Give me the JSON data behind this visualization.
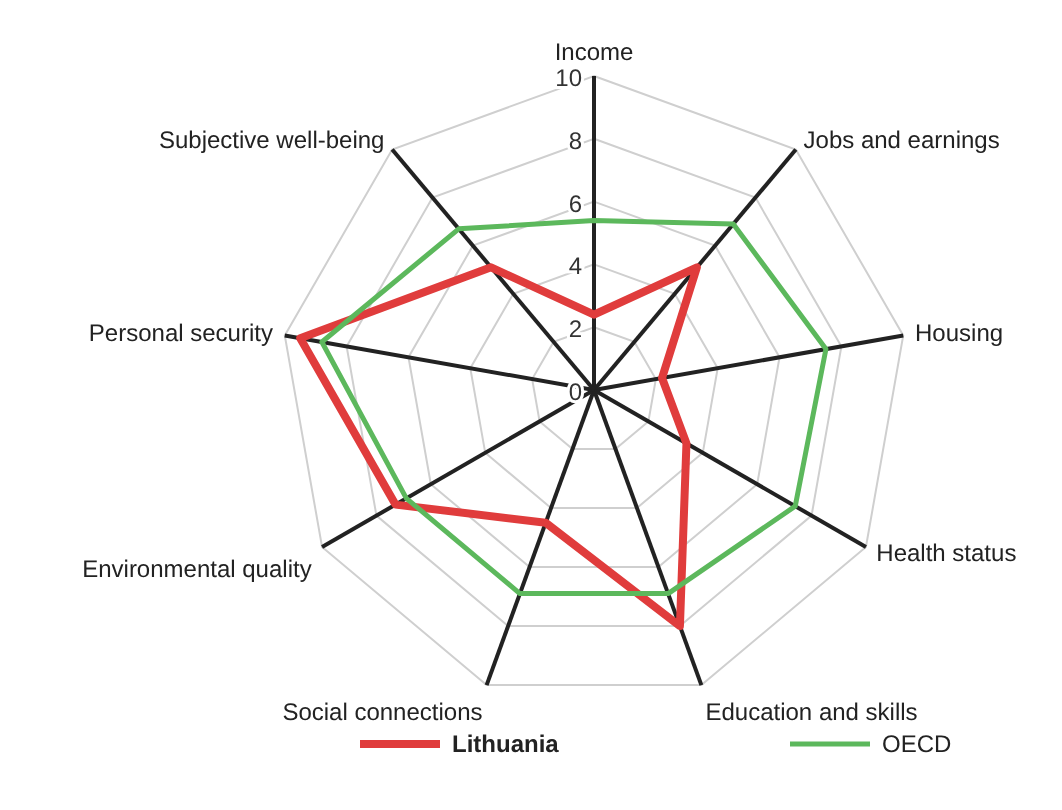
{
  "chart_data": {
    "type": "radar",
    "categories": [
      "Income",
      "Jobs and earnings",
      "Housing",
      "Health status",
      "Education and skills",
      "Social connections",
      "Environmental quality",
      "Personal security",
      "Subjective well-being"
    ],
    "series": [
      {
        "name": "Lithuania",
        "color": "#e03c3c",
        "values": [
          2.4,
          5.1,
          2.2,
          3.4,
          8.0,
          4.5,
          7.3,
          9.5,
          5.1
        ]
      },
      {
        "name": "OECD",
        "color": "#5cb85c",
        "values": [
          5.4,
          6.9,
          7.5,
          7.4,
          6.9,
          6.9,
          6.9,
          8.8,
          6.7
        ]
      }
    ],
    "ylim": [
      0,
      10
    ],
    "yticks": [
      0,
      2,
      4,
      6,
      8,
      10
    ],
    "grid": true,
    "legend": "bottom"
  }
}
